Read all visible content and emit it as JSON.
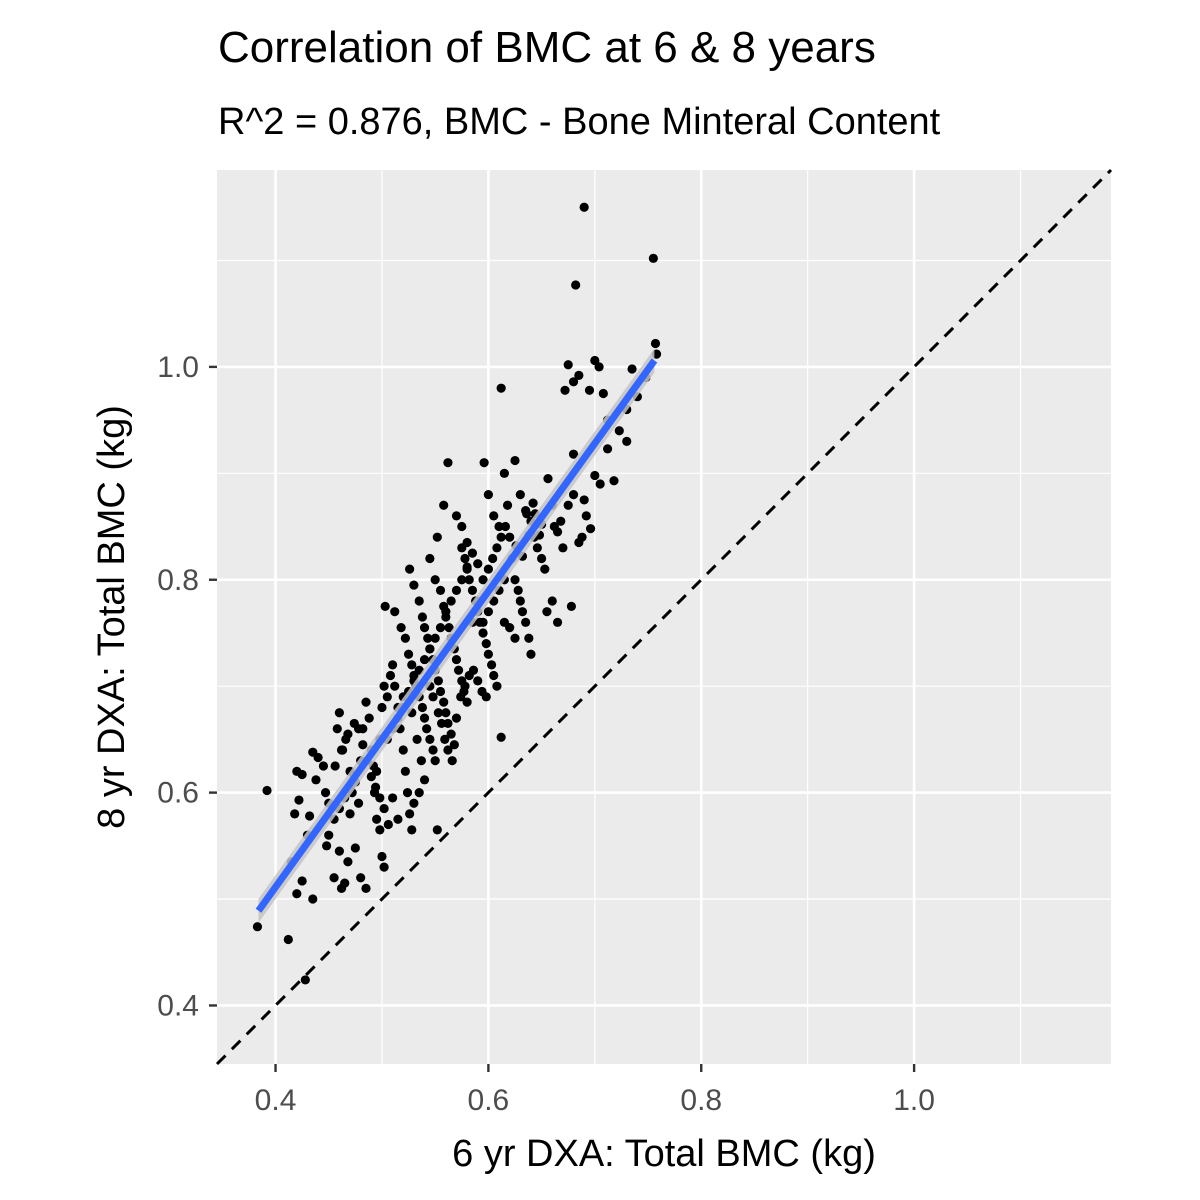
{
  "chart_data": {
    "type": "scatter",
    "title": "Correlation of BMC at 6 & 8 years",
    "subtitle": "R^2 = 0.876, BMC - Bone Minteral Content",
    "xlabel": "6 yr DXA: Total BMC (kg)",
    "ylabel": "8 yr DXA: Total BMC (kg)",
    "xlim": [
      0.345,
      1.185
    ],
    "ylim": [
      0.345,
      1.185
    ],
    "x_ticks": [
      0.4,
      0.6,
      0.8,
      1.0
    ],
    "y_ticks": [
      0.4,
      0.6,
      0.8,
      1.0
    ],
    "x_tick_labels": [
      "0.4",
      "0.6",
      "0.8",
      "1.0"
    ],
    "y_tick_labels": [
      "0.4",
      "0.6",
      "0.8",
      "1.0"
    ],
    "grid": true,
    "background_color": "#ebebeb",
    "point_color": "#000000",
    "fit_line": {
      "x": [
        0.384,
        0.756
      ],
      "y": [
        0.489,
        1.006
      ],
      "color": "#3366ff",
      "band_color": "#c4c4c4"
    },
    "reference_line": {
      "type": "identity",
      "x": [
        0.345,
        1.185
      ],
      "y": [
        0.345,
        1.185
      ],
      "style": "dashed",
      "color": "#000000"
    },
    "points": [
      [
        0.383,
        0.474
      ],
      [
        0.392,
        0.602
      ],
      [
        0.412,
        0.462
      ],
      [
        0.428,
        0.424
      ],
      [
        0.42,
        0.505
      ],
      [
        0.415,
        0.535
      ],
      [
        0.425,
        0.517
      ],
      [
        0.435,
        0.5
      ],
      [
        0.42,
        0.62
      ],
      [
        0.425,
        0.617
      ],
      [
        0.418,
        0.58
      ],
      [
        0.422,
        0.593
      ],
      [
        0.43,
        0.56
      ],
      [
        0.435,
        0.638
      ],
      [
        0.44,
        0.633
      ],
      [
        0.445,
        0.625
      ],
      [
        0.438,
        0.612
      ],
      [
        0.432,
        0.578
      ],
      [
        0.447,
        0.6
      ],
      [
        0.45,
        0.59
      ],
      [
        0.448,
        0.55
      ],
      [
        0.455,
        0.52
      ],
      [
        0.46,
        0.545
      ],
      [
        0.462,
        0.51
      ],
      [
        0.465,
        0.515
      ],
      [
        0.468,
        0.535
      ],
      [
        0.47,
        0.58
      ],
      [
        0.472,
        0.6
      ],
      [
        0.458,
        0.66
      ],
      [
        0.46,
        0.675
      ],
      [
        0.463,
        0.64
      ],
      [
        0.466,
        0.65
      ],
      [
        0.47,
        0.62
      ],
      [
        0.475,
        0.61
      ],
      [
        0.478,
        0.59
      ],
      [
        0.48,
        0.63
      ],
      [
        0.482,
        0.66
      ],
      [
        0.485,
        0.685
      ],
      [
        0.488,
        0.67
      ],
      [
        0.49,
        0.64
      ],
      [
        0.492,
        0.625
      ],
      [
        0.493,
        0.6
      ],
      [
        0.495,
        0.575
      ],
      [
        0.498,
        0.565
      ],
      [
        0.5,
        0.54
      ],
      [
        0.502,
        0.53
      ],
      [
        0.485,
        0.51
      ],
      [
        0.475,
        0.548
      ],
      [
        0.48,
        0.52
      ],
      [
        0.495,
        0.62
      ],
      [
        0.498,
        0.65
      ],
      [
        0.5,
        0.68
      ],
      [
        0.502,
        0.7
      ],
      [
        0.505,
        0.69
      ],
      [
        0.508,
        0.71
      ],
      [
        0.51,
        0.72
      ],
      [
        0.512,
        0.7
      ],
      [
        0.515,
        0.68
      ],
      [
        0.517,
        0.66
      ],
      [
        0.52,
        0.64
      ],
      [
        0.522,
        0.62
      ],
      [
        0.524,
        0.6
      ],
      [
        0.526,
        0.58
      ],
      [
        0.51,
        0.595
      ],
      [
        0.515,
        0.575
      ],
      [
        0.53,
        0.59
      ],
      [
        0.535,
        0.6
      ],
      [
        0.528,
        0.565
      ],
      [
        0.503,
        0.775
      ],
      [
        0.512,
        0.77
      ],
      [
        0.518,
        0.755
      ],
      [
        0.522,
        0.745
      ],
      [
        0.525,
        0.73
      ],
      [
        0.528,
        0.72
      ],
      [
        0.53,
        0.71
      ],
      [
        0.532,
        0.7
      ],
      [
        0.535,
        0.69
      ],
      [
        0.538,
        0.68
      ],
      [
        0.54,
        0.67
      ],
      [
        0.542,
        0.66
      ],
      [
        0.545,
        0.65
      ],
      [
        0.548,
        0.64
      ],
      [
        0.55,
        0.63
      ],
      [
        0.552,
        0.565
      ],
      [
        0.526,
        0.81
      ],
      [
        0.53,
        0.795
      ],
      [
        0.535,
        0.78
      ],
      [
        0.538,
        0.765
      ],
      [
        0.54,
        0.755
      ],
      [
        0.543,
        0.745
      ],
      [
        0.545,
        0.735
      ],
      [
        0.548,
        0.725
      ],
      [
        0.55,
        0.715
      ],
      [
        0.553,
        0.705
      ],
      [
        0.555,
        0.695
      ],
      [
        0.558,
        0.685
      ],
      [
        0.56,
        0.675
      ],
      [
        0.562,
        0.665
      ],
      [
        0.565,
        0.655
      ],
      [
        0.568,
        0.645
      ],
      [
        0.545,
        0.82
      ],
      [
        0.55,
        0.8
      ],
      [
        0.555,
        0.79
      ],
      [
        0.558,
        0.775
      ],
      [
        0.56,
        0.765
      ],
      [
        0.563,
        0.755
      ],
      [
        0.565,
        0.745
      ],
      [
        0.568,
        0.735
      ],
      [
        0.57,
        0.725
      ],
      [
        0.572,
        0.715
      ],
      [
        0.575,
        0.705
      ],
      [
        0.577,
        0.695
      ],
      [
        0.58,
        0.685
      ],
      [
        0.552,
        0.84
      ],
      [
        0.558,
        0.87
      ],
      [
        0.562,
        0.91
      ],
      [
        0.575,
        0.83
      ],
      [
        0.578,
        0.82
      ],
      [
        0.58,
        0.81
      ],
      [
        0.582,
        0.8
      ],
      [
        0.585,
        0.79
      ],
      [
        0.588,
        0.78
      ],
      [
        0.59,
        0.77
      ],
      [
        0.592,
        0.76
      ],
      [
        0.595,
        0.75
      ],
      [
        0.598,
        0.74
      ],
      [
        0.6,
        0.73
      ],
      [
        0.603,
        0.72
      ],
      [
        0.605,
        0.71
      ],
      [
        0.608,
        0.7
      ],
      [
        0.596,
        0.91
      ],
      [
        0.6,
        0.88
      ],
      [
        0.605,
        0.86
      ],
      [
        0.61,
        0.85
      ],
      [
        0.612,
        0.98
      ],
      [
        0.615,
        0.9
      ],
      [
        0.618,
        0.87
      ],
      [
        0.62,
        0.84
      ],
      [
        0.622,
        0.82
      ],
      [
        0.625,
        0.8
      ],
      [
        0.628,
        0.79
      ],
      [
        0.63,
        0.78
      ],
      [
        0.632,
        0.77
      ],
      [
        0.635,
        0.76
      ],
      [
        0.638,
        0.745
      ],
      [
        0.64,
        0.73
      ],
      [
        0.62,
        0.755
      ],
      [
        0.625,
        0.745
      ],
      [
        0.612,
        0.652
      ],
      [
        0.615,
        0.76
      ],
      [
        0.625,
        0.912
      ],
      [
        0.63,
        0.88
      ],
      [
        0.635,
        0.865
      ],
      [
        0.64,
        0.855
      ],
      [
        0.643,
        0.84
      ],
      [
        0.646,
        0.83
      ],
      [
        0.65,
        0.82
      ],
      [
        0.653,
        0.81
      ],
      [
        0.656,
        0.895
      ],
      [
        0.66,
        0.87
      ],
      [
        0.662,
        0.85
      ],
      [
        0.665,
        0.845
      ],
      [
        0.668,
        0.855
      ],
      [
        0.67,
        0.83
      ],
      [
        0.655,
        0.77
      ],
      [
        0.66,
        0.78
      ],
      [
        0.665,
        0.76
      ],
      [
        0.675,
        0.87
      ],
      [
        0.678,
        0.775
      ],
      [
        0.68,
        0.88
      ],
      [
        0.685,
        0.835
      ],
      [
        0.688,
        0.84
      ],
      [
        0.69,
        0.875
      ],
      [
        0.692,
        0.86
      ],
      [
        0.696,
        0.848
      ],
      [
        0.68,
        0.918
      ],
      [
        0.672,
        0.978
      ],
      [
        0.675,
        1.002
      ],
      [
        0.68,
        0.986
      ],
      [
        0.685,
        0.992
      ],
      [
        0.682,
        1.077
      ],
      [
        0.69,
        1.15
      ],
      [
        0.695,
        0.978
      ],
      [
        0.7,
        1.006
      ],
      [
        0.704,
        1.0
      ],
      [
        0.708,
        0.975
      ],
      [
        0.712,
        0.923
      ],
      [
        0.718,
        0.893
      ],
      [
        0.73,
        0.96
      ],
      [
        0.735,
        0.998
      ],
      [
        0.74,
        0.972
      ],
      [
        0.748,
        0.99
      ],
      [
        0.755,
        1.102
      ],
      [
        0.757,
        1.022
      ],
      [
        0.758,
        1.012
      ],
      [
        0.712,
        0.95
      ],
      [
        0.723,
        0.94
      ],
      [
        0.73,
        0.93
      ],
      [
        0.7,
        0.898
      ],
      [
        0.705,
        0.89
      ],
      [
        0.52,
        0.69
      ],
      [
        0.528,
        0.675
      ],
      [
        0.533,
        0.65
      ],
      [
        0.537,
        0.63
      ],
      [
        0.54,
        0.612
      ],
      [
        0.545,
        0.7
      ],
      [
        0.548,
        0.69
      ],
      [
        0.553,
        0.675
      ],
      [
        0.556,
        0.665
      ],
      [
        0.559,
        0.65
      ],
      [
        0.562,
        0.64
      ],
      [
        0.566,
        0.63
      ],
      [
        0.57,
        0.67
      ],
      [
        0.574,
        0.69
      ],
      [
        0.578,
        0.7
      ],
      [
        0.582,
        0.71
      ],
      [
        0.586,
        0.715
      ],
      [
        0.59,
        0.705
      ],
      [
        0.594,
        0.695
      ],
      [
        0.598,
        0.69
      ],
      [
        0.585,
        0.76
      ],
      [
        0.59,
        0.78
      ],
      [
        0.595,
        0.8
      ],
      [
        0.6,
        0.81
      ],
      [
        0.604,
        0.82
      ],
      [
        0.608,
        0.83
      ],
      [
        0.612,
        0.84
      ],
      [
        0.616,
        0.85
      ],
      [
        0.57,
        0.86
      ],
      [
        0.575,
        0.85
      ],
      [
        0.58,
        0.835
      ],
      [
        0.585,
        0.825
      ],
      [
        0.59,
        0.815
      ],
      [
        0.595,
        0.76
      ],
      [
        0.6,
        0.77
      ],
      [
        0.605,
        0.78
      ],
      [
        0.61,
        0.79
      ],
      [
        0.615,
        0.8
      ],
      [
        0.478,
        0.66
      ],
      [
        0.482,
        0.645
      ],
      [
        0.486,
        0.63
      ],
      [
        0.49,
        0.615
      ],
      [
        0.494,
        0.605
      ],
      [
        0.498,
        0.595
      ],
      [
        0.502,
        0.585
      ],
      [
        0.506,
        0.57
      ],
      [
        0.45,
        0.56
      ],
      [
        0.455,
        0.575
      ],
      [
        0.46,
        0.585
      ],
      [
        0.465,
        0.595
      ],
      [
        0.47,
        0.605
      ],
      [
        0.474,
        0.615
      ],
      [
        0.456,
        0.625
      ],
      [
        0.462,
        0.64
      ],
      [
        0.468,
        0.655
      ],
      [
        0.474,
        0.665
      ],
      [
        0.505,
        0.65
      ],
      [
        0.51,
        0.66
      ],
      [
        0.515,
        0.67
      ],
      [
        0.52,
        0.68
      ],
      [
        0.525,
        0.695
      ],
      [
        0.53,
        0.705
      ],
      [
        0.535,
        0.715
      ],
      [
        0.54,
        0.725
      ],
      [
        0.545,
        0.735
      ],
      [
        0.55,
        0.745
      ],
      [
        0.555,
        0.755
      ],
      [
        0.56,
        0.77
      ],
      [
        0.565,
        0.78
      ],
      [
        0.57,
        0.79
      ],
      [
        0.575,
        0.8
      ],
      [
        0.58,
        0.812
      ],
      [
        0.626,
        0.832
      ],
      [
        0.632,
        0.822
      ],
      [
        0.638,
        0.842
      ],
      [
        0.644,
        0.862
      ],
      [
        0.65,
        0.852
      ],
      [
        0.648,
        0.842
      ],
      [
        0.642,
        0.872
      ],
      [
        0.636,
        0.862
      ]
    ]
  }
}
